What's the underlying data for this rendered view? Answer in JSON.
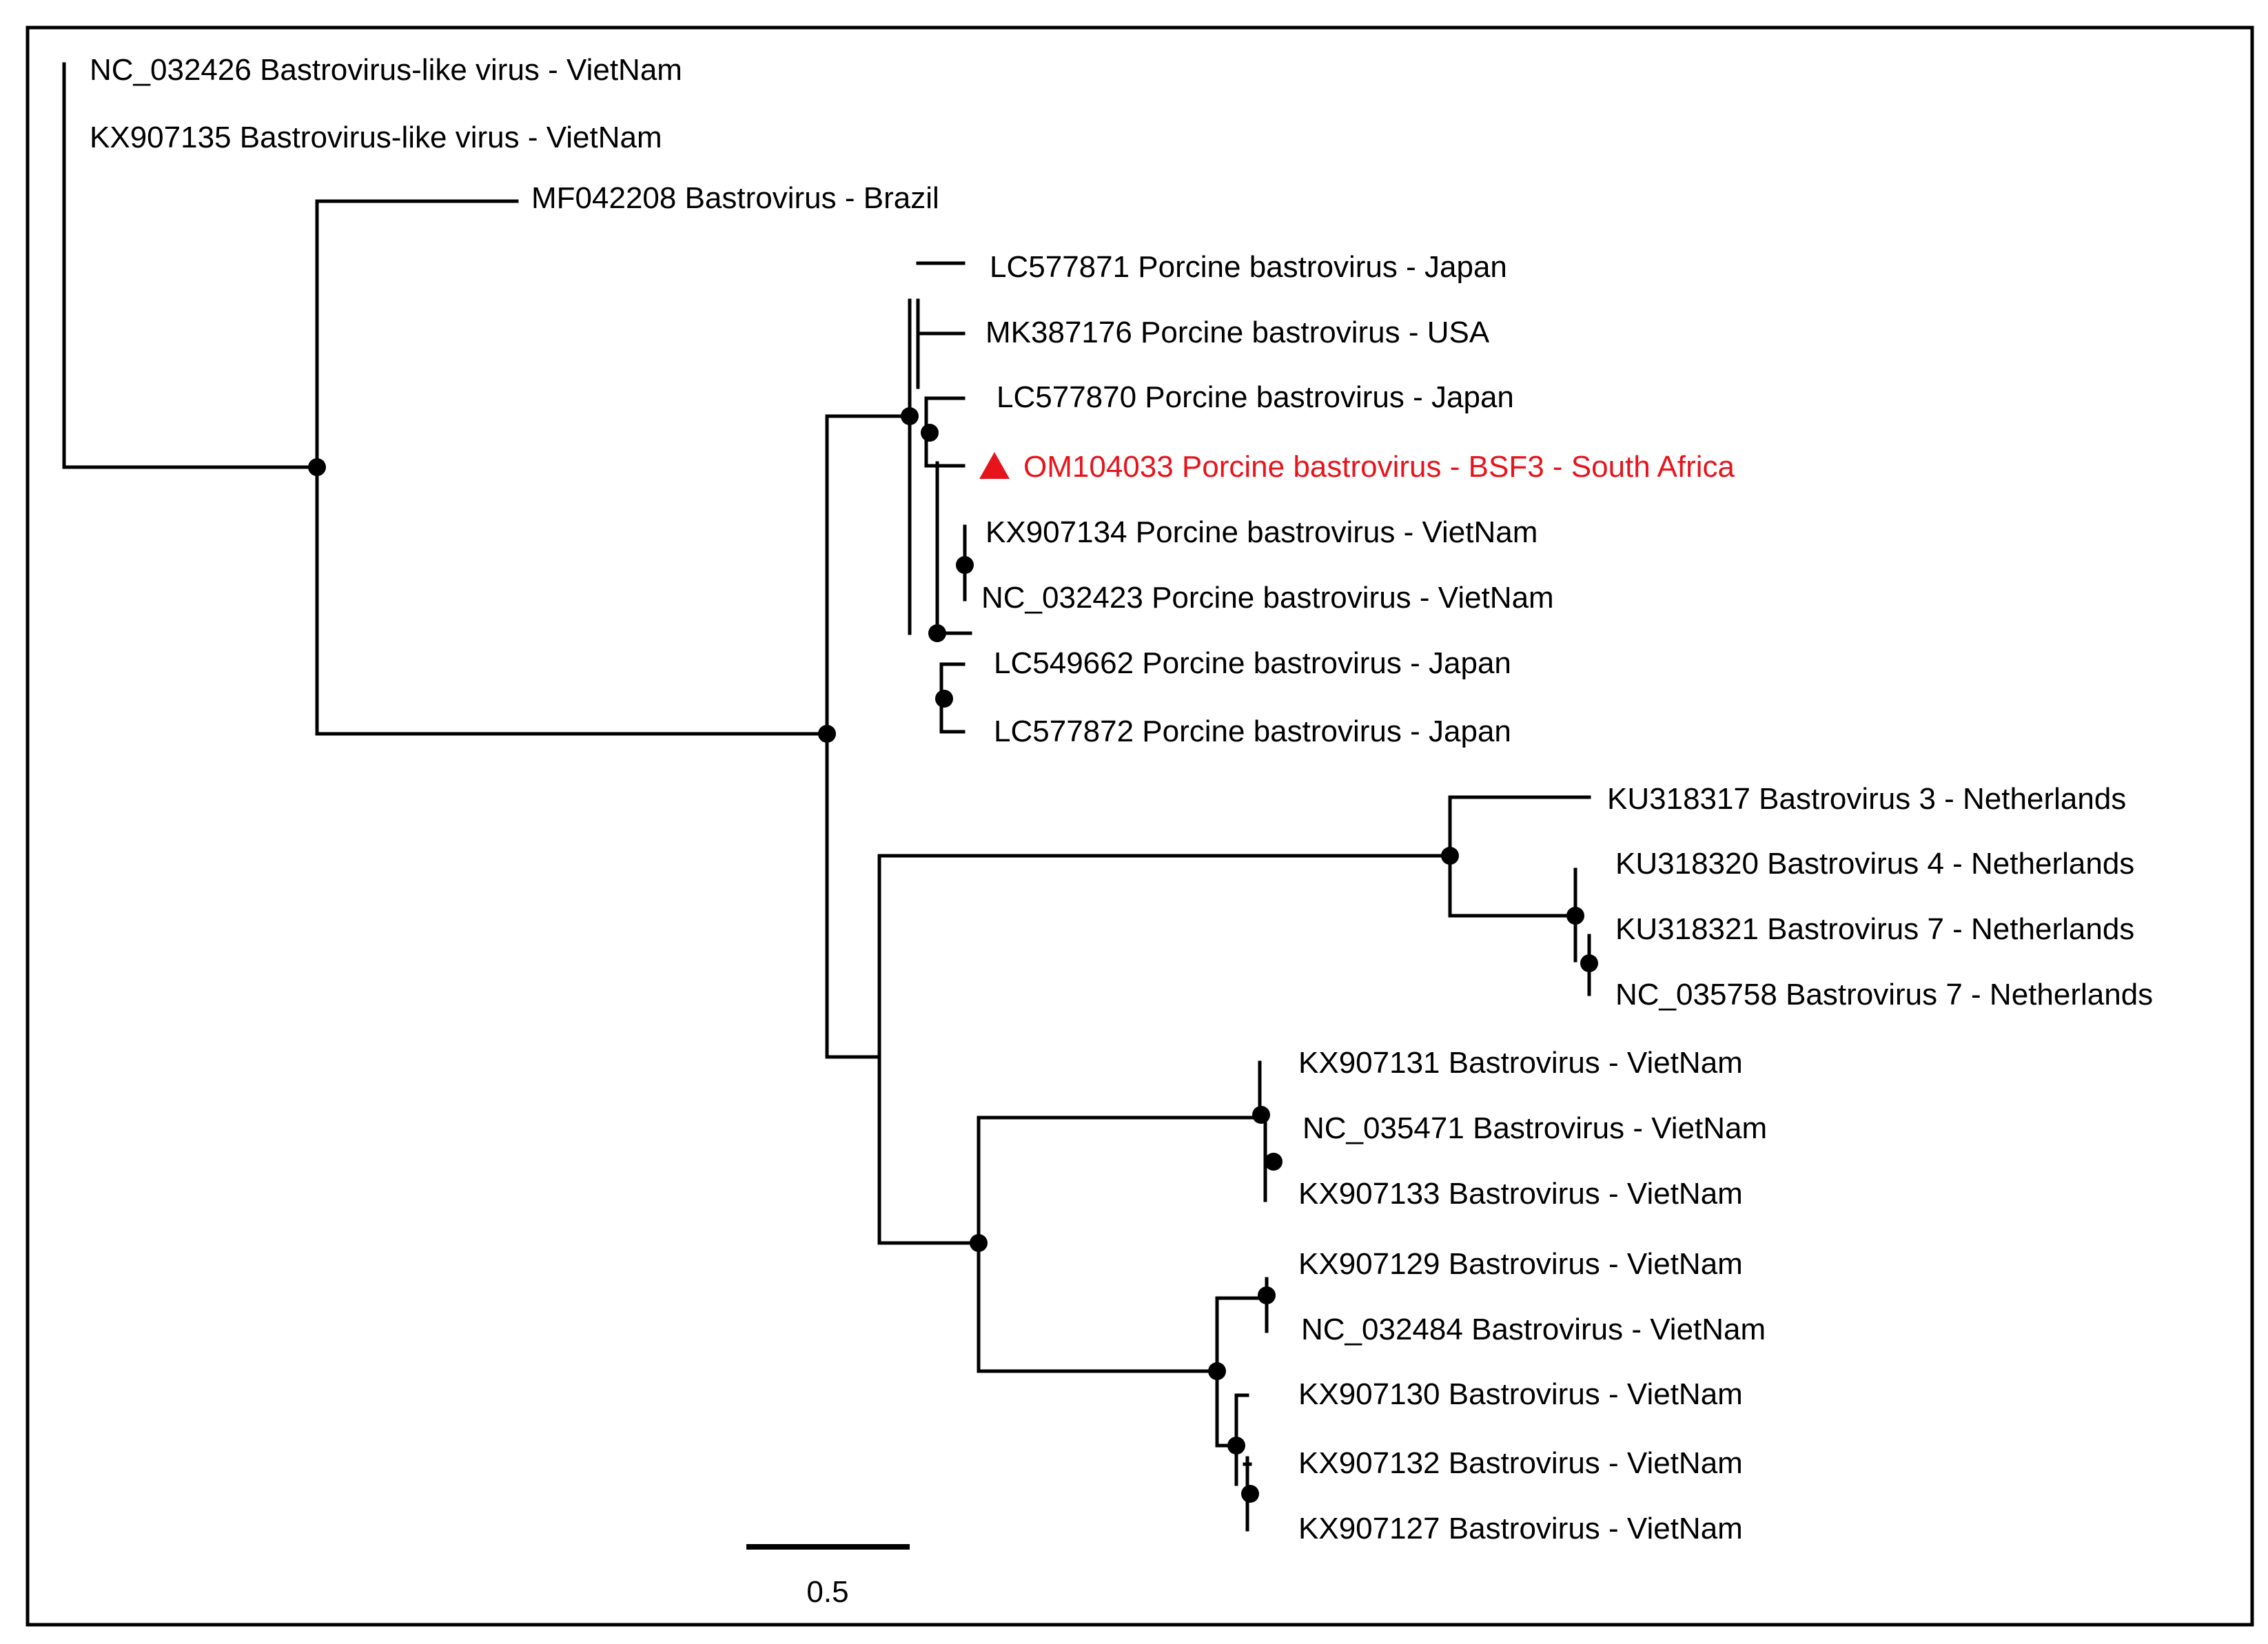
{
  "figure": {
    "type": "phylogenetic-tree",
    "scale_bar": {
      "label": "0.5",
      "value": 0.5
    },
    "colors": {
      "branch": "#000000",
      "highlight": "#e8141c",
      "frame": "#000000"
    }
  },
  "taxa": [
    {
      "id": "t1",
      "label": "NC_032426 Bastrovirus-like virus - VietNam"
    },
    {
      "id": "t2",
      "label": "KX907135 Bastrovirus-like virus - VietNam"
    },
    {
      "id": "t3",
      "label": "MF042208 Bastrovirus - Brazil"
    },
    {
      "id": "t4",
      "label": "LC577871 Porcine bastrovirus - Japan"
    },
    {
      "id": "t5",
      "label": "MK387176 Porcine bastrovirus - USA"
    },
    {
      "id": "t6",
      "label": "LC577870 Porcine bastrovirus - Japan"
    },
    {
      "id": "t7",
      "label": "OM104033 Porcine bastrovirus - BSF3 - South Africa",
      "highlight": true,
      "marker": "red-triangle-icon"
    },
    {
      "id": "t8",
      "label": "KX907134 Porcine bastrovirus - VietNam"
    },
    {
      "id": "t9",
      "label": "NC_032423 Porcine bastrovirus - VietNam"
    },
    {
      "id": "t10",
      "label": "LC549662 Porcine bastrovirus - Japan"
    },
    {
      "id": "t11",
      "label": "LC577872 Porcine bastrovirus - Japan"
    },
    {
      "id": "t12",
      "label": "KU318317 Bastrovirus 3 - Netherlands"
    },
    {
      "id": "t13",
      "label": "KU318320 Bastrovirus 4 - Netherlands"
    },
    {
      "id": "t14",
      "label": "KU318321 Bastrovirus 7 - Netherlands"
    },
    {
      "id": "t15",
      "label": "NC_035758 Bastrovirus 7 - Netherlands"
    },
    {
      "id": "t16",
      "label": "KX907131 Bastrovirus - VietNam"
    },
    {
      "id": "t17",
      "label": "NC_035471 Bastrovirus - VietNam"
    },
    {
      "id": "t18",
      "label": "KX907133 Bastrovirus - VietNam"
    },
    {
      "id": "t19",
      "label": "KX907129 Bastrovirus - VietNam"
    },
    {
      "id": "t20",
      "label": "NC_032484 Bastrovirus - VietNam"
    },
    {
      "id": "t21",
      "label": "KX907130 Bastrovirus - VietNam"
    },
    {
      "id": "t22",
      "label": "KX907132 Bastrovirus - VietNam"
    },
    {
      "id": "t23",
      "label": "KX907127 Bastrovirus - VietNam"
    }
  ]
}
